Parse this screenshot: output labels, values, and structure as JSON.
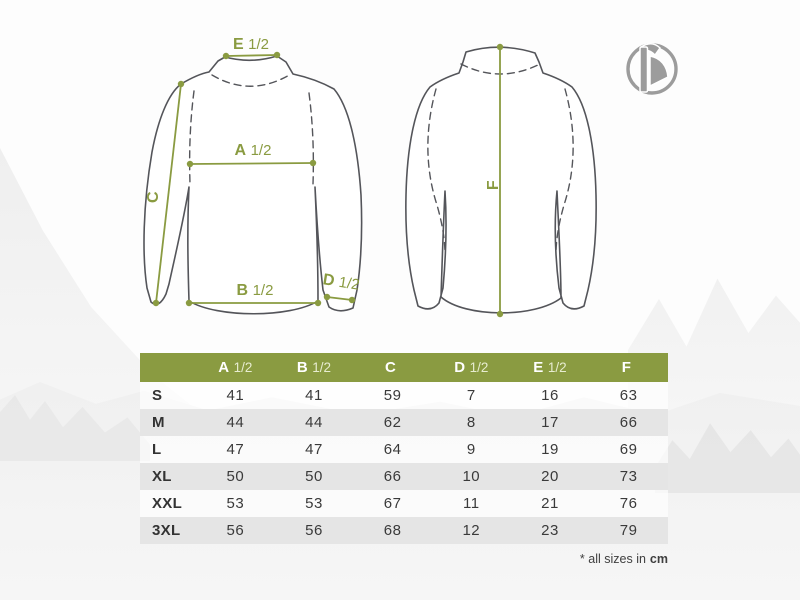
{
  "colors": {
    "accent_green": "#8a9b41",
    "garment_outline": "#54555a",
    "table_alt_row": "#e5e5e5",
    "header_text": "#ffffff",
    "header_fraction_text": "#e7ecd0",
    "logo_gray": "#9c9c9c"
  },
  "brand": {
    "logo": "delphin-circle-fish-logo"
  },
  "diagram": {
    "front_labels": {
      "e": {
        "letter": "E",
        "fraction": "1/2"
      },
      "a": {
        "letter": "A",
        "fraction": "1/2"
      },
      "b": {
        "letter": "B",
        "fraction": "1/2"
      },
      "c": {
        "letter": "C"
      },
      "d": {
        "letter": "D",
        "fraction": "1/2"
      }
    },
    "back_labels": {
      "f": {
        "letter": "F"
      }
    }
  },
  "table": {
    "columns": [
      {
        "letter": "A",
        "fraction": "1/2"
      },
      {
        "letter": "B",
        "fraction": "1/2"
      },
      {
        "letter": "C",
        "fraction": ""
      },
      {
        "letter": "D",
        "fraction": "1/2"
      },
      {
        "letter": "E",
        "fraction": "1/2"
      },
      {
        "letter": "F",
        "fraction": ""
      }
    ],
    "rows": [
      {
        "size": "S",
        "values": [
          41,
          41,
          59,
          7,
          16,
          63
        ]
      },
      {
        "size": "M",
        "values": [
          44,
          44,
          62,
          8,
          17,
          66
        ]
      },
      {
        "size": "L",
        "values": [
          47,
          47,
          64,
          9,
          19,
          69
        ]
      },
      {
        "size": "XL",
        "values": [
          50,
          50,
          66,
          10,
          20,
          73
        ]
      },
      {
        "size": "XXL",
        "values": [
          53,
          53,
          67,
          11,
          21,
          76
        ]
      },
      {
        "size": "3XL",
        "values": [
          56,
          56,
          68,
          12,
          23,
          79
        ]
      }
    ]
  },
  "footnote": {
    "prefix": "* all sizes in",
    "unit": "cm"
  }
}
